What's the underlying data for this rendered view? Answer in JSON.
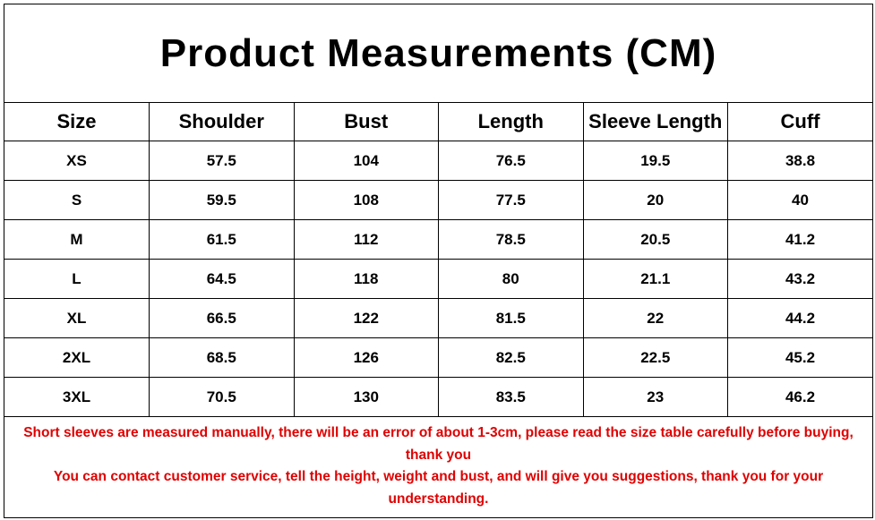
{
  "header": {
    "title": "Product Measurements (CM)"
  },
  "table": {
    "columns": [
      "Size",
      "Shoulder",
      "Bust",
      "Length",
      "Sleeve Length",
      "Cuff"
    ],
    "rows": [
      [
        "XS",
        "57.5",
        "104",
        "76.5",
        "19.5",
        "38.8"
      ],
      [
        "S",
        "59.5",
        "108",
        "77.5",
        "20",
        "40"
      ],
      [
        "M",
        "61.5",
        "112",
        "78.5",
        "20.5",
        "41.2"
      ],
      [
        "L",
        "64.5",
        "118",
        "80",
        "21.1",
        "43.2"
      ],
      [
        "XL",
        "66.5",
        "122",
        "81.5",
        "22",
        "44.2"
      ],
      [
        "2XL",
        "68.5",
        "126",
        "82.5",
        "22.5",
        "45.2"
      ],
      [
        "3XL",
        "70.5",
        "130",
        "83.5",
        "23",
        "46.2"
      ]
    ]
  },
  "notes": [
    "Short sleeves are measured manually, there will be an error of about 1-3cm, please read the size table carefully before buying, thank you",
    "You can contact customer service, tell the height, weight and bust, and will give you suggestions, thank you for your understanding."
  ]
}
